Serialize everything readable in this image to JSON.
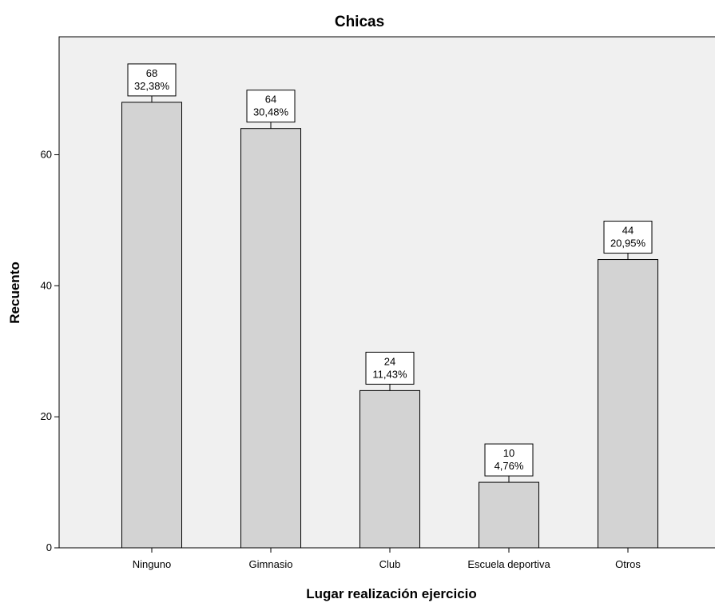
{
  "chart_data": {
    "type": "bar",
    "title": "Chicas",
    "xlabel": "Lugar realización ejercicio",
    "ylabel": "Recuento",
    "categories": [
      "Ninguno",
      "Gimnasio",
      "Club",
      "Escuela deportiva",
      "Otros"
    ],
    "values": [
      68,
      64,
      24,
      10,
      44
    ],
    "percent_labels": [
      "32,38%",
      "30,48%",
      "11,43%",
      "4,76%",
      "20,95%"
    ],
    "yticks": [
      0,
      20,
      40,
      60
    ],
    "ylim": [
      0,
      78
    ],
    "grid": false,
    "legend": "none",
    "colors": {
      "plot_background": "#f0f0f0",
      "bar_fill": "#d3d3d3",
      "bar_stroke": "#000000"
    }
  }
}
